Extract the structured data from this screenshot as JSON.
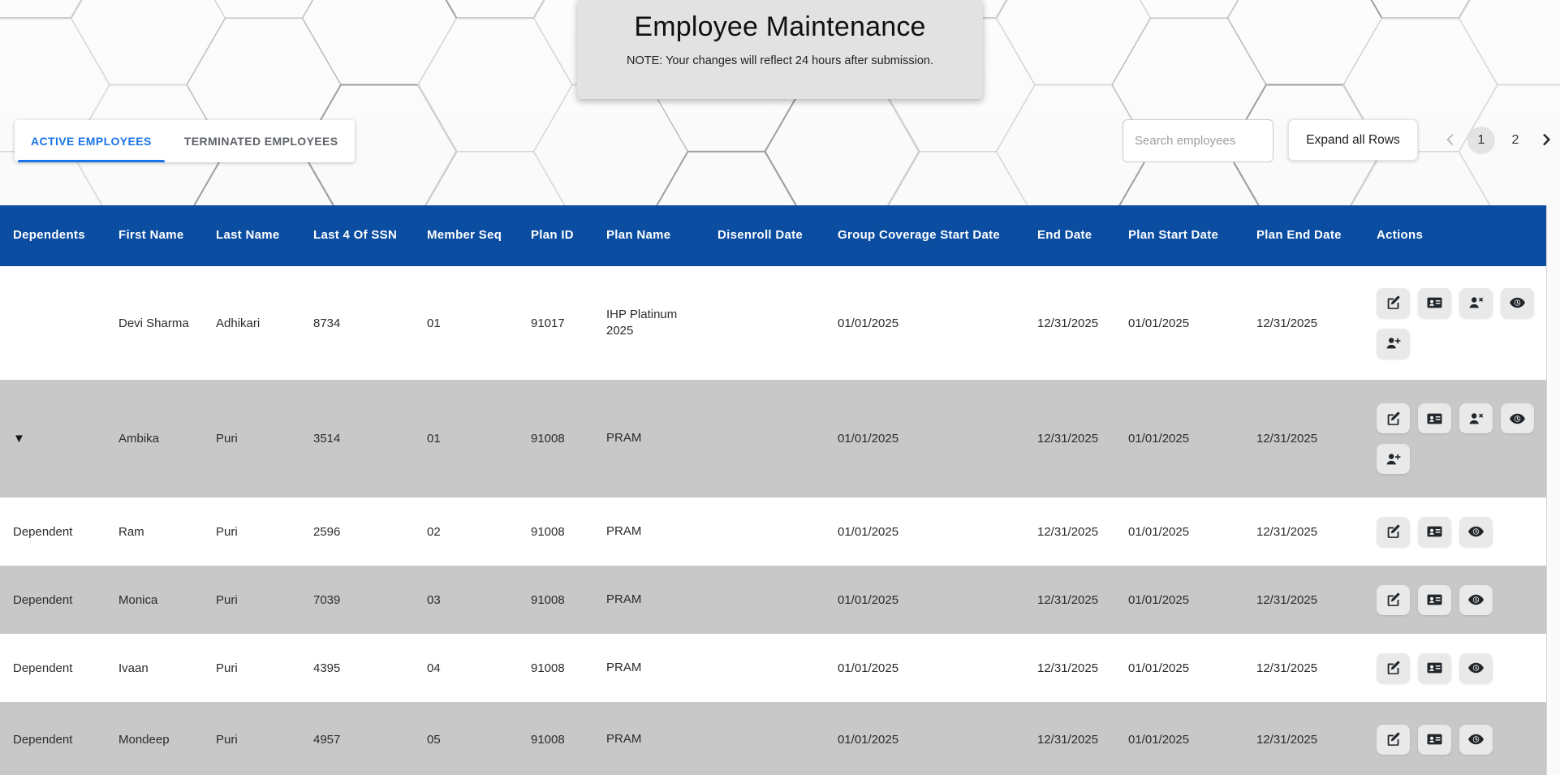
{
  "header": {
    "title": "Employee Maintenance",
    "note": "NOTE: Your changes will reflect 24 hours after submission."
  },
  "tabs": [
    {
      "label": "ACTIVE EMPLOYEES",
      "active": true
    },
    {
      "label": "TERMINATED EMPLOYEES",
      "active": false
    }
  ],
  "toolbar": {
    "search_placeholder": "Search employees",
    "search_value": "",
    "expand_button_label": "Expand all Rows"
  },
  "pagination": {
    "prev_icon": "chevron-left",
    "next_icon": "chevron-right",
    "pages": [
      "1",
      "2"
    ],
    "active_page": "1"
  },
  "table": {
    "columns": [
      {
        "key": "dependents",
        "label": "Dependents"
      },
      {
        "key": "first_name",
        "label": "First Name"
      },
      {
        "key": "last_name",
        "label": "Last Name"
      },
      {
        "key": "ssn_last4",
        "label": "Last 4 Of SSN"
      },
      {
        "key": "member_seq",
        "label": "Member Seq"
      },
      {
        "key": "plan_id",
        "label": "Plan ID"
      },
      {
        "key": "plan_name",
        "label": "Plan Name"
      },
      {
        "key": "disenroll_date",
        "label": "Disenroll Date"
      },
      {
        "key": "group_coverage_start_date",
        "label": "Group Coverage Start Date"
      },
      {
        "key": "end_date",
        "label": "End Date"
      },
      {
        "key": "plan_start_date",
        "label": "Plan Start Date"
      },
      {
        "key": "plan_end_date",
        "label": "Plan End Date"
      },
      {
        "key": "actions",
        "label": "Actions"
      }
    ],
    "rows": [
      {
        "row_type": "employee",
        "expanded": false,
        "dependents": "",
        "first_name": "Devi Sharma",
        "last_name": "Adhikari",
        "ssn_last4": "8734",
        "member_seq": "01",
        "plan_id": "91017",
        "plan_name": "IHP Platinum 2025",
        "disenroll_date": "",
        "group_coverage_start_date": "01/01/2025",
        "end_date": "12/31/2025",
        "plan_start_date": "01/01/2025",
        "plan_end_date": "12/31/2025",
        "actions": [
          [
            "edit",
            "id-card",
            "remove-member",
            "view-history"
          ],
          [
            "add-dependent"
          ]
        ]
      },
      {
        "row_type": "employee",
        "expanded": true,
        "dependents": "",
        "first_name": "Ambika",
        "last_name": "Puri",
        "ssn_last4": "3514",
        "member_seq": "01",
        "plan_id": "91008",
        "plan_name": "PRAM",
        "disenroll_date": "",
        "group_coverage_start_date": "01/01/2025",
        "end_date": "12/31/2025",
        "plan_start_date": "01/01/2025",
        "plan_end_date": "12/31/2025",
        "actions": [
          [
            "edit",
            "id-card",
            "remove-member",
            "view-history"
          ],
          [
            "add-dependent"
          ]
        ]
      },
      {
        "row_type": "dependent",
        "expanded": false,
        "dependents": "Dependent",
        "first_name": "Ram",
        "last_name": "Puri",
        "ssn_last4": "2596",
        "member_seq": "02",
        "plan_id": "91008",
        "plan_name": "PRAM",
        "disenroll_date": "",
        "group_coverage_start_date": "01/01/2025",
        "end_date": "12/31/2025",
        "plan_start_date": "01/01/2025",
        "plan_end_date": "12/31/2025",
        "actions": [
          [
            "edit",
            "id-card",
            "view-history"
          ]
        ]
      },
      {
        "row_type": "dependent",
        "expanded": false,
        "dependents": "Dependent",
        "first_name": "Monica",
        "last_name": "Puri",
        "ssn_last4": "7039",
        "member_seq": "03",
        "plan_id": "91008",
        "plan_name": "PRAM",
        "disenroll_date": "",
        "group_coverage_start_date": "01/01/2025",
        "end_date": "12/31/2025",
        "plan_start_date": "01/01/2025",
        "plan_end_date": "12/31/2025",
        "actions": [
          [
            "edit",
            "id-card",
            "view-history"
          ]
        ]
      },
      {
        "row_type": "dependent",
        "expanded": false,
        "dependents": "Dependent",
        "first_name": "Ivaan",
        "last_name": "Puri",
        "ssn_last4": "4395",
        "member_seq": "04",
        "plan_id": "91008",
        "plan_name": "PRAM",
        "disenroll_date": "",
        "group_coverage_start_date": "01/01/2025",
        "end_date": "12/31/2025",
        "plan_start_date": "01/01/2025",
        "plan_end_date": "12/31/2025",
        "actions": [
          [
            "edit",
            "id-card",
            "view-history"
          ]
        ]
      },
      {
        "row_type": "dependent",
        "expanded": false,
        "dependents": "Dependent",
        "first_name": "Mondeep",
        "last_name": "Puri",
        "ssn_last4": "4957",
        "member_seq": "05",
        "plan_id": "91008",
        "plan_name": "PRAM",
        "disenroll_date": "",
        "group_coverage_start_date": "01/01/2025",
        "end_date": "12/31/2025",
        "plan_start_date": "01/01/2025",
        "plan_end_date": "12/31/2025",
        "actions": [
          [
            "edit",
            "id-card",
            "view-history"
          ]
        ]
      }
    ]
  },
  "colors": {
    "header_blue": "#0b4da1",
    "tab_blue": "#1a73e8",
    "row_gray": "#c8c8c8",
    "card_gray": "#e2e2e2"
  },
  "icons": {
    "edit": "edit-icon",
    "id-card": "id-card-icon",
    "remove-member": "remove-member-icon",
    "view-history": "view-history-icon",
    "add-dependent": "add-dependent-icon",
    "expander": "collapse-dependents-icon"
  }
}
